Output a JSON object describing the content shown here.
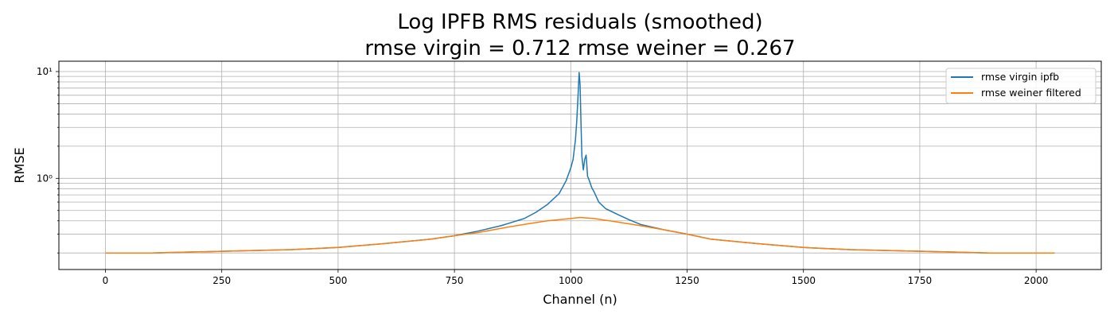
{
  "chart_data": {
    "type": "line",
    "title": "Log IPFB RMS residuals (smoothed)",
    "subtitle": "rmse virgin = 0.712 rmse weiner = 0.267",
    "xlabel": "Channel (n)",
    "ylabel": "RMSE",
    "xlim": [
      -100,
      2140
    ],
    "ylim": [
      0.14,
      12.5
    ],
    "yscale": "log",
    "grid": true,
    "legend_position": "upper right",
    "x_ticks": [
      0,
      250,
      500,
      750,
      1000,
      1250,
      1500,
      1750,
      2000
    ],
    "x_tick_labels": [
      "0",
      "250",
      "500",
      "750",
      "1000",
      "1250",
      "1500",
      "1750",
      "2000"
    ],
    "y_ticks": [
      1,
      10
    ],
    "y_tick_labels": [
      "10⁰",
      "10¹"
    ],
    "series": [
      {
        "name": "rmse virgin ipfb",
        "color": "#1f77b4",
        "x": [
          0,
          100,
          200,
          300,
          400,
          500,
          600,
          700,
          750,
          800,
          850,
          900,
          925,
          950,
          975,
          990,
          1000,
          1005,
          1010,
          1013,
          1016,
          1018,
          1020,
          1022,
          1024,
          1027,
          1030,
          1033,
          1036,
          1040,
          1045,
          1050,
          1060,
          1075,
          1100,
          1125,
          1150,
          1200,
          1250,
          1300,
          1400,
          1500,
          1600,
          1700,
          1800,
          1900,
          2000,
          2040
        ],
        "values": [
          0.2,
          0.2,
          0.205,
          0.21,
          0.215,
          0.225,
          0.245,
          0.27,
          0.29,
          0.32,
          0.36,
          0.42,
          0.48,
          0.57,
          0.72,
          0.95,
          1.25,
          1.5,
          2.3,
          3.5,
          6.5,
          9.8,
          7.5,
          3.2,
          1.6,
          1.2,
          1.5,
          1.65,
          1.05,
          0.95,
          0.82,
          0.75,
          0.6,
          0.52,
          0.46,
          0.41,
          0.37,
          0.33,
          0.3,
          0.27,
          0.245,
          0.225,
          0.215,
          0.21,
          0.205,
          0.2,
          0.2,
          0.2
        ]
      },
      {
        "name": "rmse weiner filtered",
        "color": "#ff7f0e",
        "x": [
          0,
          100,
          200,
          300,
          400,
          500,
          600,
          700,
          750,
          800,
          850,
          900,
          950,
          1000,
          1020,
          1050,
          1100,
          1150,
          1200,
          1250,
          1300,
          1400,
          1500,
          1600,
          1700,
          1800,
          1900,
          2000,
          2040
        ],
        "values": [
          0.2,
          0.2,
          0.205,
          0.21,
          0.215,
          0.225,
          0.245,
          0.27,
          0.29,
          0.31,
          0.34,
          0.37,
          0.4,
          0.42,
          0.43,
          0.42,
          0.39,
          0.36,
          0.33,
          0.3,
          0.27,
          0.245,
          0.225,
          0.215,
          0.21,
          0.205,
          0.2,
          0.2,
          0.2
        ]
      }
    ]
  }
}
